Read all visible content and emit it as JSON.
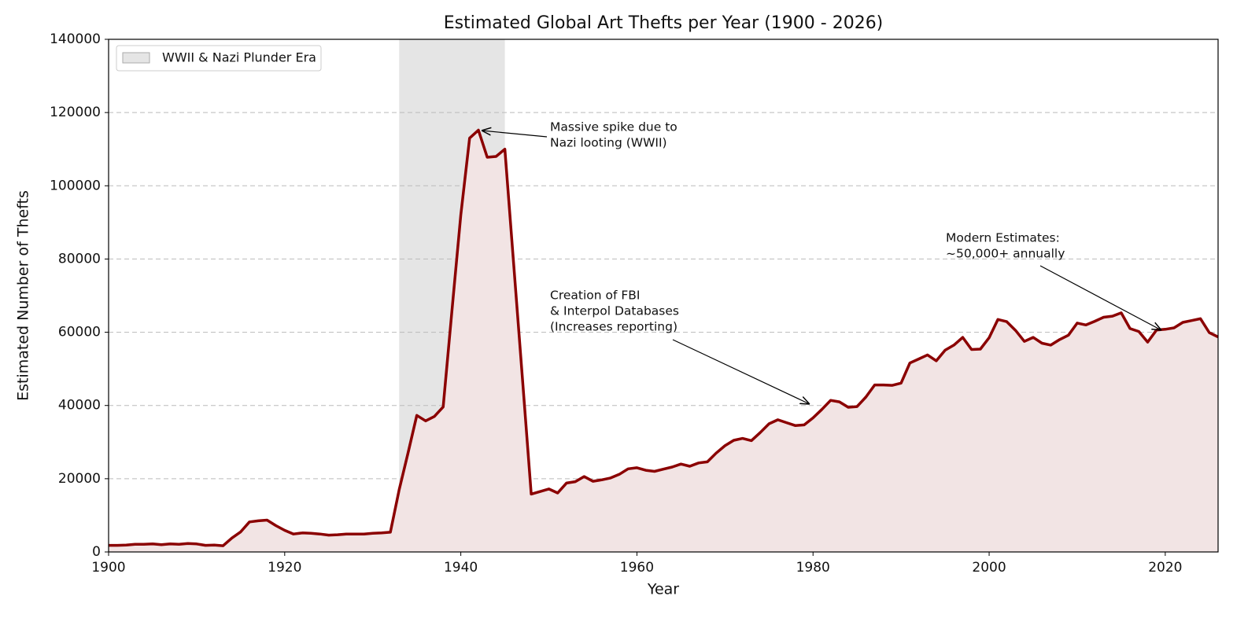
{
  "chart_data": {
    "type": "line",
    "title": "Estimated Global Art Thefts per Year (1900 - 2026)",
    "x_label": "Year",
    "y_label": "Estimated Number of Thefts",
    "x": [
      1900,
      1901,
      1902,
      1903,
      1904,
      1905,
      1906,
      1907,
      1908,
      1909,
      1910,
      1911,
      1912,
      1913,
      1914,
      1915,
      1916,
      1917,
      1918,
      1919,
      1920,
      1921,
      1922,
      1923,
      1924,
      1925,
      1926,
      1927,
      1928,
      1929,
      1930,
      1931,
      1932,
      1933,
      1934,
      1935,
      1936,
      1937,
      1938,
      1939,
      1940,
      1941,
      1942,
      1943,
      1944,
      1945,
      1946,
      1947,
      1948,
      1949,
      1950,
      1951,
      1952,
      1953,
      1954,
      1955,
      1956,
      1957,
      1958,
      1959,
      1960,
      1961,
      1962,
      1963,
      1964,
      1965,
      1966,
      1967,
      1968,
      1969,
      1970,
      1971,
      1972,
      1973,
      1974,
      1975,
      1976,
      1977,
      1978,
      1979,
      1980,
      1981,
      1982,
      1983,
      1984,
      1985,
      1986,
      1987,
      1988,
      1989,
      1990,
      1991,
      1992,
      1993,
      1994,
      1995,
      1996,
      1997,
      1998,
      1999,
      2000,
      2001,
      2002,
      2003,
      2004,
      2005,
      2006,
      2007,
      2008,
      2009,
      2010,
      2011,
      2012,
      2013,
      2014,
      2015,
      2016,
      2017,
      2018,
      2019,
      2020,
      2021,
      2022,
      2023,
      2024,
      2025,
      2026
    ],
    "series": [
      {
        "color": "#8b0000",
        "fill": "#f2e4e4",
        "values": [
          1800,
          1800,
          1900,
          2100,
          2100,
          2200,
          2000,
          2200,
          2100,
          2300,
          2200,
          1800,
          1900,
          1700,
          3800,
          5500,
          8200,
          8500,
          8700,
          7200,
          5900,
          4900,
          5200,
          5100,
          4900,
          4600,
          4700,
          4900,
          4900,
          4900,
          5100,
          5200,
          5400,
          17000,
          27000,
          37300,
          35800,
          37000,
          39600,
          66000,
          92000,
          113000,
          115200,
          107800,
          108000,
          110000,
          78600,
          47200,
          15800,
          16500,
          17200,
          16100,
          18800,
          19200,
          20600,
          19300,
          19700,
          20200,
          21200,
          22700,
          23000,
          22300,
          22000,
          22600,
          23200,
          24000,
          23400,
          24300,
          24600,
          27000,
          29000,
          30500,
          31000,
          30400,
          32600,
          35000,
          36100,
          35300,
          34500,
          34700,
          36600,
          38900,
          41400,
          41000,
          39500,
          39700,
          42300,
          45600,
          45600,
          45500,
          46100,
          51600,
          52700,
          53800,
          52200,
          55100,
          56500,
          58600,
          55300,
          55400,
          58500,
          63500,
          62900,
          60500,
          57500,
          58600,
          57000,
          56500,
          58000,
          59200,
          62500,
          62000,
          63000,
          64100,
          64400,
          65300,
          61000,
          60200,
          57300,
          60600,
          60800,
          61200,
          62700,
          63200,
          63700,
          59900,
          58700
        ]
      }
    ],
    "shaded_span": {
      "label": "WWII & Nazi Plunder Era",
      "x": [
        1933,
        1945
      ],
      "color": "#bdbdbd"
    },
    "annotations": [
      {
        "lines": [
          "Massive spike due to",
          "Nazi looting (WWII)"
        ]
      },
      {
        "lines": [
          "Creation of FBI",
          "& Interpol Databases",
          "(Increases reporting)"
        ]
      },
      {
        "lines": [
          "Modern Estimates:",
          "~50,000+ annually"
        ]
      }
    ],
    "xlim": [
      1900,
      2026
    ],
    "xticks": [
      1900,
      1920,
      1940,
      1960,
      1980,
      2000,
      2020
    ],
    "ylim": [
      0,
      140000
    ],
    "yticks": [
      0,
      20000,
      40000,
      60000,
      80000,
      100000,
      120000,
      140000
    ],
    "grid": true,
    "legend": "upper left"
  }
}
